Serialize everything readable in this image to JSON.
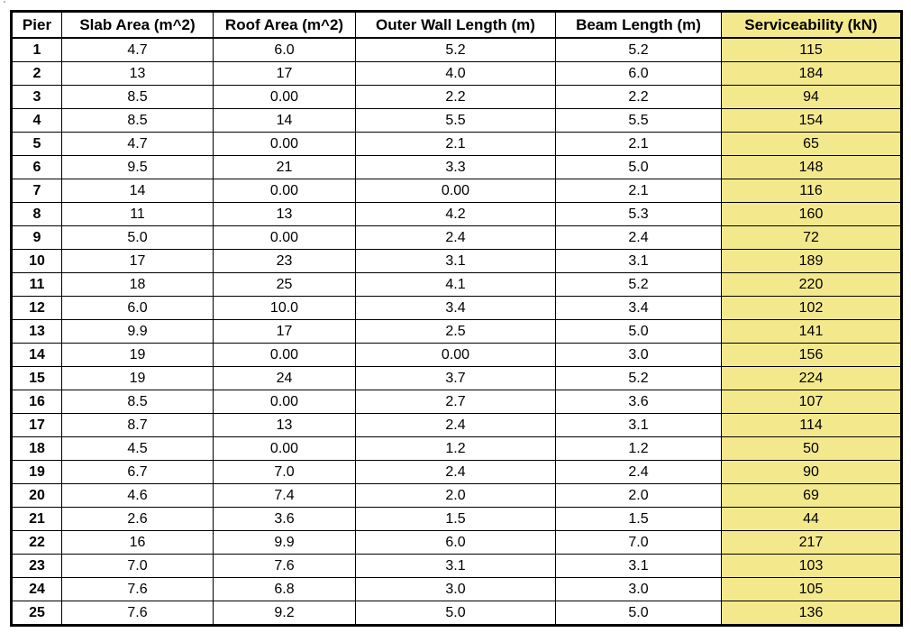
{
  "table": {
    "headers": [
      "Pier",
      "Slab Area (m^2)",
      "Roof Area (m^2)",
      "Outer Wall Length (m)",
      "Beam Length (m)",
      "Serviceability (kN)"
    ],
    "highlight_color": "#f3e98c",
    "rows": [
      [
        "1",
        "4.7",
        "6.0",
        "5.2",
        "5.2",
        "115"
      ],
      [
        "2",
        "13",
        "17",
        "4.0",
        "6.0",
        "184"
      ],
      [
        "3",
        "8.5",
        "0.00",
        "2.2",
        "2.2",
        "94"
      ],
      [
        "4",
        "8.5",
        "14",
        "5.5",
        "5.5",
        "154"
      ],
      [
        "5",
        "4.7",
        "0.00",
        "2.1",
        "2.1",
        "65"
      ],
      [
        "6",
        "9.5",
        "21",
        "3.3",
        "5.0",
        "148"
      ],
      [
        "7",
        "14",
        "0.00",
        "0.00",
        "2.1",
        "116"
      ],
      [
        "8",
        "11",
        "13",
        "4.2",
        "5.3",
        "160"
      ],
      [
        "9",
        "5.0",
        "0.00",
        "2.4",
        "2.4",
        "72"
      ],
      [
        "10",
        "17",
        "23",
        "3.1",
        "3.1",
        "189"
      ],
      [
        "11",
        "18",
        "25",
        "4.1",
        "5.2",
        "220"
      ],
      [
        "12",
        "6.0",
        "10.0",
        "3.4",
        "3.4",
        "102"
      ],
      [
        "13",
        "9.9",
        "17",
        "2.5",
        "5.0",
        "141"
      ],
      [
        "14",
        "19",
        "0.00",
        "0.00",
        "3.0",
        "156"
      ],
      [
        "15",
        "19",
        "24",
        "3.7",
        "5.2",
        "224"
      ],
      [
        "16",
        "8.5",
        "0.00",
        "2.7",
        "3.6",
        "107"
      ],
      [
        "17",
        "8.7",
        "13",
        "2.4",
        "3.1",
        "114"
      ],
      [
        "18",
        "4.5",
        "0.00",
        "1.2",
        "1.2",
        "50"
      ],
      [
        "19",
        "6.7",
        "7.0",
        "2.4",
        "2.4",
        "90"
      ],
      [
        "20",
        "4.6",
        "7.4",
        "2.0",
        "2.0",
        "69"
      ],
      [
        "21",
        "2.6",
        "3.6",
        "1.5",
        "1.5",
        "44"
      ],
      [
        "22",
        "16",
        "9.9",
        "6.0",
        "7.0",
        "217"
      ],
      [
        "23",
        "7.0",
        "7.6",
        "3.1",
        "3.1",
        "103"
      ],
      [
        "24",
        "7.6",
        "6.8",
        "3.0",
        "3.0",
        "105"
      ],
      [
        "25",
        "7.6",
        "9.2",
        "5.0",
        "5.0",
        "136"
      ]
    ]
  }
}
